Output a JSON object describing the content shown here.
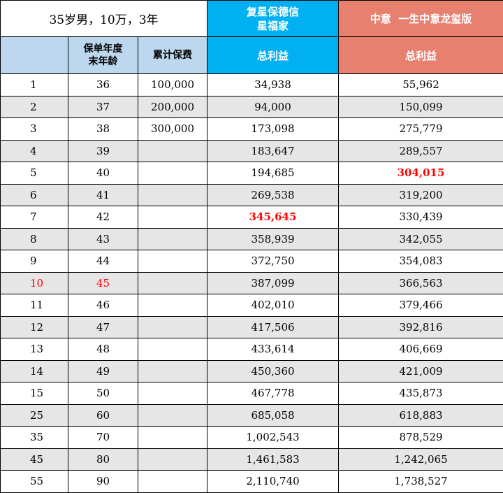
{
  "title": "35岁男，10万，3年",
  "product_a": {
    "name_line1": "复星保德信",
    "name_line2": "星福家"
  },
  "product_b": {
    "name": "中意  一生中意龙玺版"
  },
  "headers": {
    "policy_year": "",
    "age_line1": "保单年度",
    "age_line2": "末年龄",
    "premium": "累计保费",
    "benefit_a": "总利益",
    "benefit_b": "总利益"
  },
  "highlight_colors": {
    "red": "#ff0000",
    "blue_header": "#00b0f0",
    "salmon_header": "#e88070",
    "light_header": "#bdd7ee"
  },
  "rows": [
    {
      "year": "1",
      "age": "36",
      "premium": "100,000",
      "a": "34,938",
      "b": "55,962"
    },
    {
      "year": "2",
      "age": "37",
      "premium": "200,000",
      "a": "94,000",
      "b": "150,099"
    },
    {
      "year": "3",
      "age": "38",
      "premium": "300,000",
      "a": "173,098",
      "b": "275,779"
    },
    {
      "year": "4",
      "age": "39",
      "premium": "",
      "a": "183,647",
      "b": "289,557"
    },
    {
      "year": "5",
      "age": "40",
      "premium": "",
      "a": "194,685",
      "b": "304,015",
      "b_highlight": true
    },
    {
      "year": "6",
      "age": "41",
      "premium": "",
      "a": "269,538",
      "b": "319,200"
    },
    {
      "year": "7",
      "age": "42",
      "premium": "",
      "a": "345,645",
      "b": "330,439",
      "a_highlight": true
    },
    {
      "year": "8",
      "age": "43",
      "premium": "",
      "a": "358,939",
      "b": "342,055"
    },
    {
      "year": "9",
      "age": "44",
      "premium": "",
      "a": "372,750",
      "b": "354,083"
    },
    {
      "year": "10",
      "age": "45",
      "premium": "",
      "a": "387,099",
      "b": "366,563",
      "row_red": true
    },
    {
      "year": "11",
      "age": "46",
      "premium": "",
      "a": "402,010",
      "b": "379,466"
    },
    {
      "year": "12",
      "age": "47",
      "premium": "",
      "a": "417,506",
      "b": "392,816"
    },
    {
      "year": "13",
      "age": "48",
      "premium": "",
      "a": "433,614",
      "b": "406,669"
    },
    {
      "year": "14",
      "age": "49",
      "premium": "",
      "a": "450,360",
      "b": "421,009"
    },
    {
      "year": "15",
      "age": "50",
      "premium": "",
      "a": "467,778",
      "b": "435,873"
    },
    {
      "year": "25",
      "age": "60",
      "premium": "",
      "a": "685,058",
      "b": "618,883"
    },
    {
      "year": "35",
      "age": "70",
      "premium": "",
      "a": "1,002,543",
      "b": "878,529"
    },
    {
      "year": "45",
      "age": "80",
      "premium": "",
      "a": "1,461,583",
      "b": "1,242,065"
    },
    {
      "year": "55",
      "age": "90",
      "premium": "",
      "a": "2,110,740",
      "b": "1,738,527"
    }
  ]
}
